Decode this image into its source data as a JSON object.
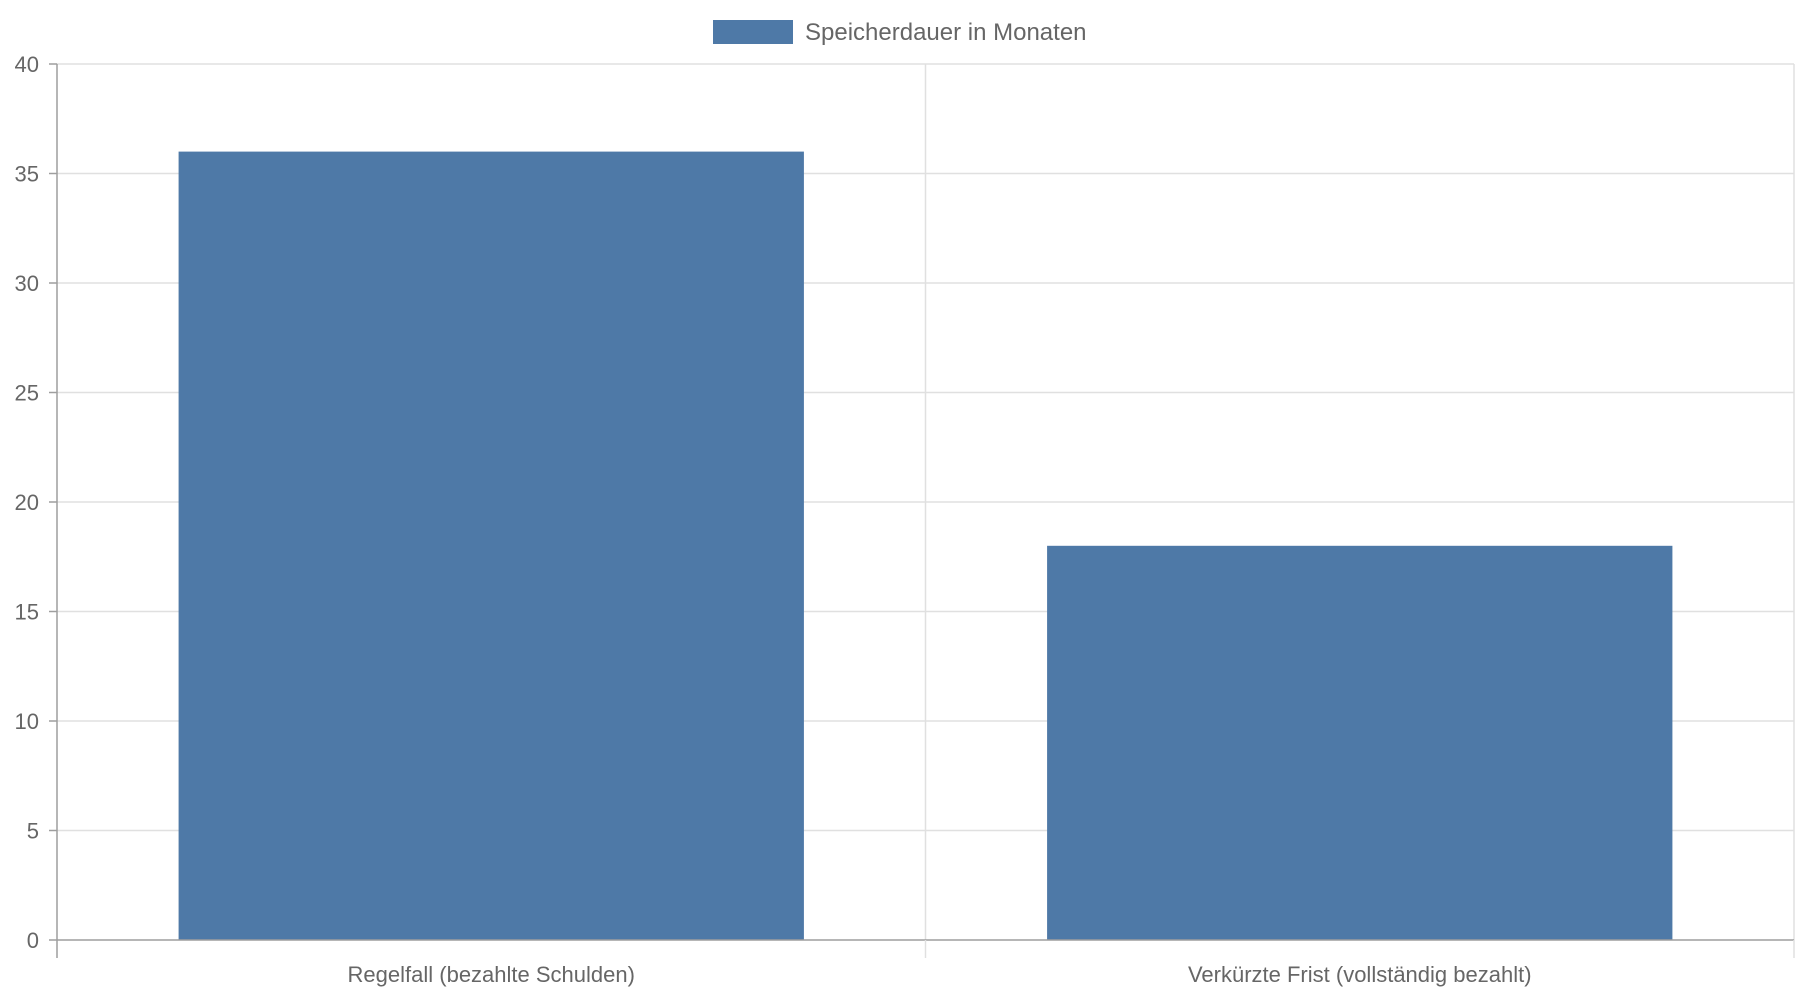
{
  "chart_data": {
    "type": "bar",
    "categories": [
      "Regelfall (bezahlte Schulden)",
      "Verkürzte Frist (vollständig bezahlt)"
    ],
    "series": [
      {
        "name": "Speicherdauer in Monaten",
        "values": [
          36,
          18
        ],
        "color": "#4e79a7"
      }
    ],
    "ylim": [
      0,
      40
    ],
    "yticks": [
      0,
      5,
      10,
      15,
      20,
      25,
      30,
      35,
      40
    ],
    "grid": true,
    "legend_position": "top-center",
    "title": "",
    "xlabel": "",
    "ylabel": ""
  },
  "colors": {
    "grid": "#e0e0e0",
    "axis": "#9e9e9e",
    "text": "#666666"
  }
}
